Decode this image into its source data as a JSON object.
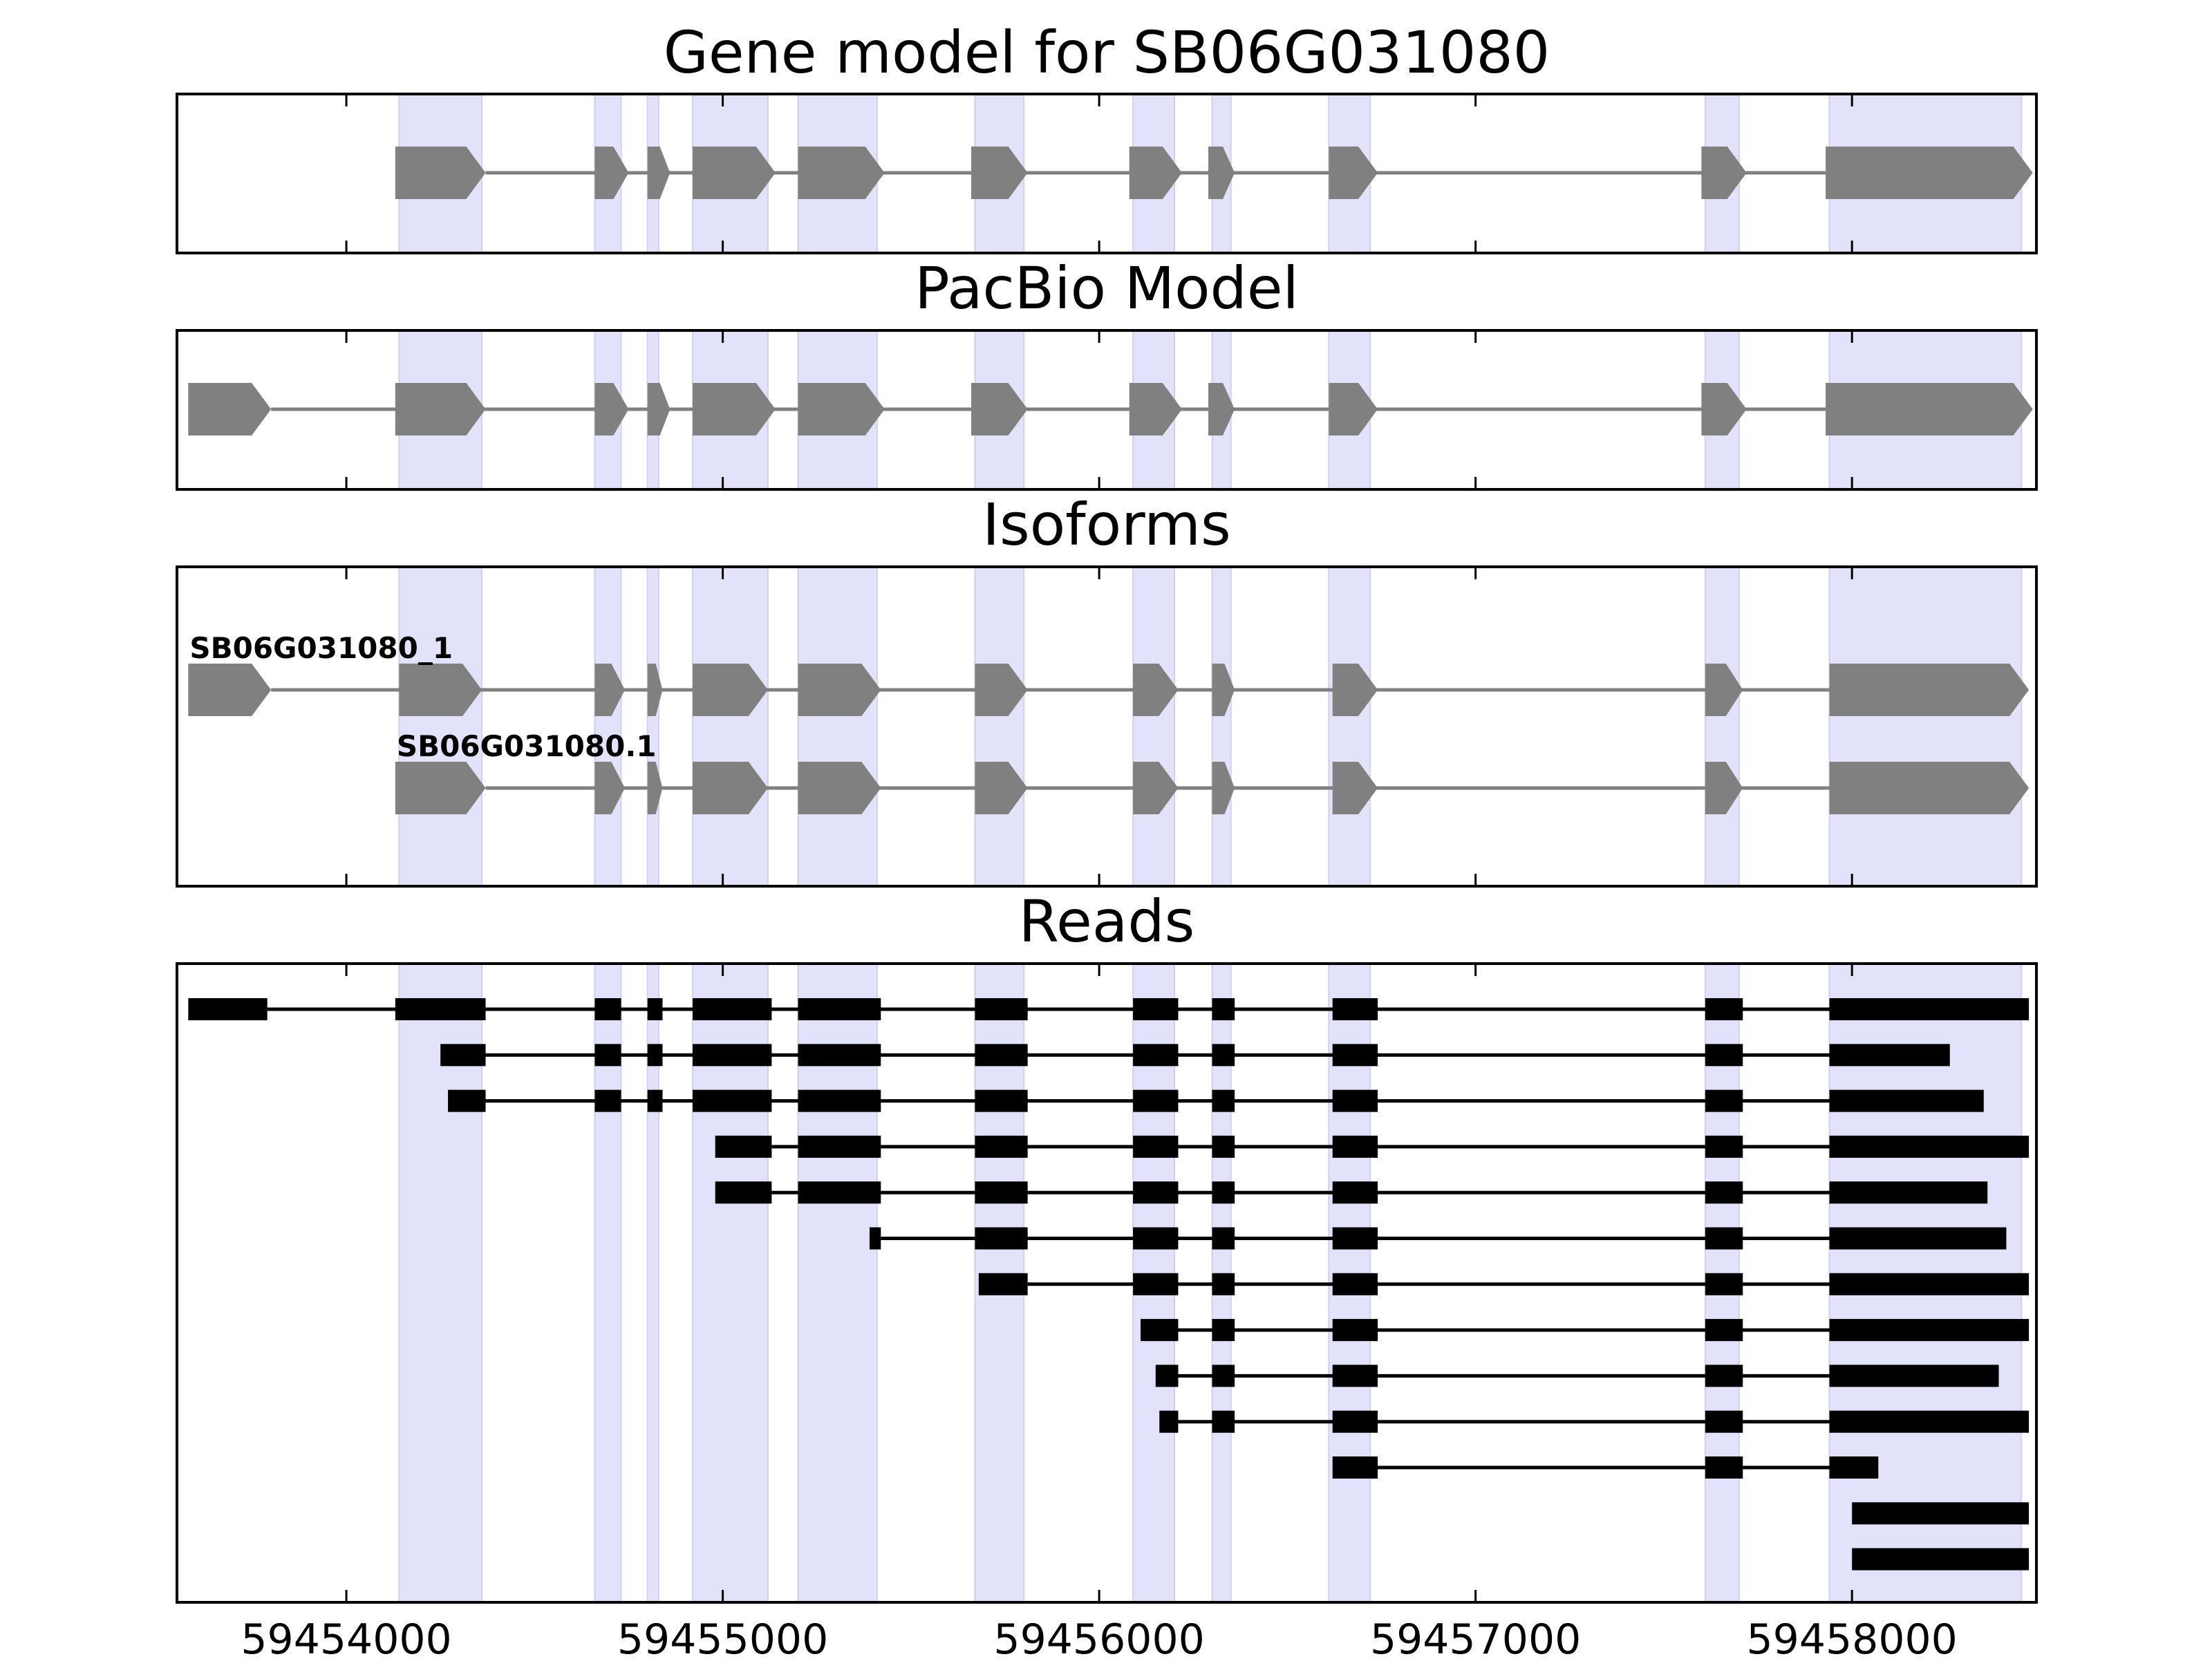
{
  "chart_data": {
    "type": "gene-structure",
    "xlim": [
      59453550,
      59458490
    ],
    "xticks": [
      59454000,
      59455000,
      59456000,
      59457000,
      59458000
    ],
    "xtick_labels": [
      "59454000",
      "59455000",
      "59456000",
      "59457000",
      "59458000"
    ],
    "highlight_exons": [
      [
        59454140,
        59454360
      ],
      [
        59454660,
        59454730
      ],
      [
        59454800,
        59454830
      ],
      [
        59454920,
        59455120
      ],
      [
        59455200,
        59455410
      ],
      [
        59455670,
        59455800
      ],
      [
        59456090,
        59456200
      ],
      [
        59456300,
        59456350
      ],
      [
        59456610,
        59456720
      ],
      [
        59457610,
        59457700
      ],
      [
        59457940,
        59458450
      ]
    ],
    "panels": [
      {
        "title": "Gene model for SB06G031080",
        "style": "arrow",
        "rows": [
          {
            "label": "",
            "exons": [
              [
                59454130,
                59454370
              ],
              [
                59454660,
                59454750
              ],
              [
                59454800,
                59454860
              ],
              [
                59454920,
                59455140
              ],
              [
                59455200,
                59455430
              ],
              [
                59455660,
                59455810
              ],
              [
                59456080,
                59456220
              ],
              [
                59456290,
                59456360
              ],
              [
                59456610,
                59456740
              ],
              [
                59457600,
                59457720
              ],
              [
                59457930,
                59458480
              ]
            ]
          }
        ]
      },
      {
        "title": "PacBio Model",
        "style": "arrow",
        "rows": [
          {
            "label": "",
            "exons": [
              [
                59453580,
                59453800
              ],
              [
                59454130,
                59454370
              ],
              [
                59454660,
                59454750
              ],
              [
                59454800,
                59454860
              ],
              [
                59454920,
                59455140
              ],
              [
                59455200,
                59455430
              ],
              [
                59455660,
                59455810
              ],
              [
                59456080,
                59456220
              ],
              [
                59456290,
                59456360
              ],
              [
                59456610,
                59456740
              ],
              [
                59457600,
                59457720
              ],
              [
                59457930,
                59458480
              ]
            ]
          }
        ]
      },
      {
        "title": "Isoforms",
        "style": "arrow",
        "rows": [
          {
            "label": "SB06G031080_1",
            "exons": [
              [
                59453580,
                59453800
              ],
              [
                59454140,
                59454360
              ],
              [
                59454660,
                59454740
              ],
              [
                59454800,
                59454840
              ],
              [
                59454920,
                59455120
              ],
              [
                59455200,
                59455420
              ],
              [
                59455670,
                59455810
              ],
              [
                59456090,
                59456210
              ],
              [
                59456300,
                59456360
              ],
              [
                59456620,
                59456740
              ],
              [
                59457610,
                59457710
              ],
              [
                59457940,
                59458470
              ]
            ]
          },
          {
            "label": "SB06G031080.1",
            "exons": [
              [
                59454130,
                59454370
              ],
              [
                59454660,
                59454740
              ],
              [
                59454800,
                59454840
              ],
              [
                59454920,
                59455120
              ],
              [
                59455200,
                59455420
              ],
              [
                59455670,
                59455810
              ],
              [
                59456090,
                59456210
              ],
              [
                59456300,
                59456360
              ],
              [
                59456620,
                59456740
              ],
              [
                59457610,
                59457710
              ],
              [
                59457940,
                59458470
              ]
            ]
          }
        ]
      },
      {
        "title": "Reads",
        "style": "block",
        "rows": [
          {
            "label": "",
            "exons": [
              [
                59453580,
                59453790
              ],
              [
                59454130,
                59454370
              ],
              [
                59454660,
                59454730
              ],
              [
                59454800,
                59454840
              ],
              [
                59454920,
                59455130
              ],
              [
                59455200,
                59455420
              ],
              [
                59455670,
                59455810
              ],
              [
                59456090,
                59456210
              ],
              [
                59456300,
                59456360
              ],
              [
                59456620,
                59456740
              ],
              [
                59457610,
                59457710
              ],
              [
                59457940,
                59458470
              ]
            ]
          },
          {
            "label": "",
            "exons": [
              [
                59454250,
                59454370
              ],
              [
                59454660,
                59454730
              ],
              [
                59454800,
                59454840
              ],
              [
                59454920,
                59455130
              ],
              [
                59455200,
                59455420
              ],
              [
                59455670,
                59455810
              ],
              [
                59456090,
                59456210
              ],
              [
                59456300,
                59456360
              ],
              [
                59456620,
                59456740
              ],
              [
                59457610,
                59457710
              ],
              [
                59457940,
                59458260
              ]
            ]
          },
          {
            "label": "",
            "exons": [
              [
                59454270,
                59454370
              ],
              [
                59454660,
                59454730
              ],
              [
                59454800,
                59454840
              ],
              [
                59454920,
                59455130
              ],
              [
                59455200,
                59455420
              ],
              [
                59455670,
                59455810
              ],
              [
                59456090,
                59456210
              ],
              [
                59456300,
                59456360
              ],
              [
                59456620,
                59456740
              ],
              [
                59457610,
                59457710
              ],
              [
                59457940,
                59458350
              ]
            ]
          },
          {
            "label": "",
            "exons": [
              [
                59454980,
                59455130
              ],
              [
                59455200,
                59455420
              ],
              [
                59455670,
                59455810
              ],
              [
                59456090,
                59456210
              ],
              [
                59456300,
                59456360
              ],
              [
                59456620,
                59456740
              ],
              [
                59457610,
                59457710
              ],
              [
                59457940,
                59458470
              ]
            ]
          },
          {
            "label": "",
            "exons": [
              [
                59454980,
                59455130
              ],
              [
                59455200,
                59455420
              ],
              [
                59455670,
                59455810
              ],
              [
                59456090,
                59456210
              ],
              [
                59456300,
                59456360
              ],
              [
                59456620,
                59456740
              ],
              [
                59457610,
                59457710
              ],
              [
                59457940,
                59458360
              ]
            ]
          },
          {
            "label": "",
            "exons": [
              [
                59455390,
                59455420
              ],
              [
                59455670,
                59455810
              ],
              [
                59456090,
                59456210
              ],
              [
                59456300,
                59456360
              ],
              [
                59456620,
                59456740
              ],
              [
                59457610,
                59457710
              ],
              [
                59457940,
                59458410
              ]
            ]
          },
          {
            "label": "",
            "exons": [
              [
                59455680,
                59455810
              ],
              [
                59456090,
                59456210
              ],
              [
                59456300,
                59456360
              ],
              [
                59456620,
                59456740
              ],
              [
                59457610,
                59457710
              ],
              [
                59457940,
                59458470
              ]
            ]
          },
          {
            "label": "",
            "exons": [
              [
                59456110,
                59456210
              ],
              [
                59456300,
                59456360
              ],
              [
                59456620,
                59456740
              ],
              [
                59457610,
                59457710
              ],
              [
                59457940,
                59458470
              ]
            ]
          },
          {
            "label": "",
            "exons": [
              [
                59456150,
                59456210
              ],
              [
                59456300,
                59456360
              ],
              [
                59456620,
                59456740
              ],
              [
                59457610,
                59457710
              ],
              [
                59457940,
                59458390
              ]
            ]
          },
          {
            "label": "",
            "exons": [
              [
                59456160,
                59456210
              ],
              [
                59456300,
                59456360
              ],
              [
                59456620,
                59456740
              ],
              [
                59457610,
                59457710
              ],
              [
                59457940,
                59458470
              ]
            ]
          },
          {
            "label": "",
            "exons": [
              [
                59456620,
                59456740
              ],
              [
                59457610,
                59457710
              ],
              [
                59457940,
                59458070
              ]
            ]
          },
          {
            "label": "",
            "exons": [
              [
                59458000,
                59458470
              ]
            ]
          },
          {
            "label": "",
            "exons": [
              [
                59458000,
                59458470
              ]
            ]
          }
        ]
      }
    ]
  },
  "colors": {
    "highlight": "#e2e2fb",
    "highlight_edge": "#d0d0f0",
    "arrow_exon": "#808080",
    "arrow_intron": "#808080",
    "read_exon": "#000000",
    "read_intron": "#000000",
    "axis": "#000000"
  }
}
